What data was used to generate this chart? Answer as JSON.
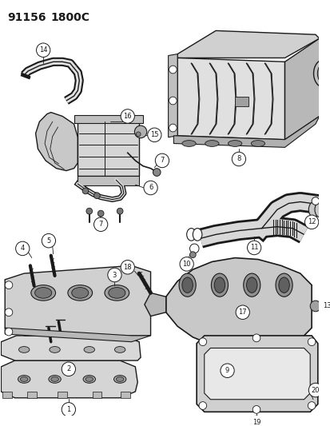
{
  "background_color": "#ffffff",
  "line_color": "#1a1a1a",
  "figsize": [
    4.14,
    5.33
  ],
  "dpi": 100,
  "header": {
    "text1": "91156",
    "text2": "1800C",
    "fontsize": 10,
    "fontweight": "bold"
  },
  "label_fontsize": 6.0,
  "circle_r": 0.013,
  "gray_light": "#d8d8d8",
  "gray_mid": "#b8b8b8",
  "gray_dark": "#909090"
}
